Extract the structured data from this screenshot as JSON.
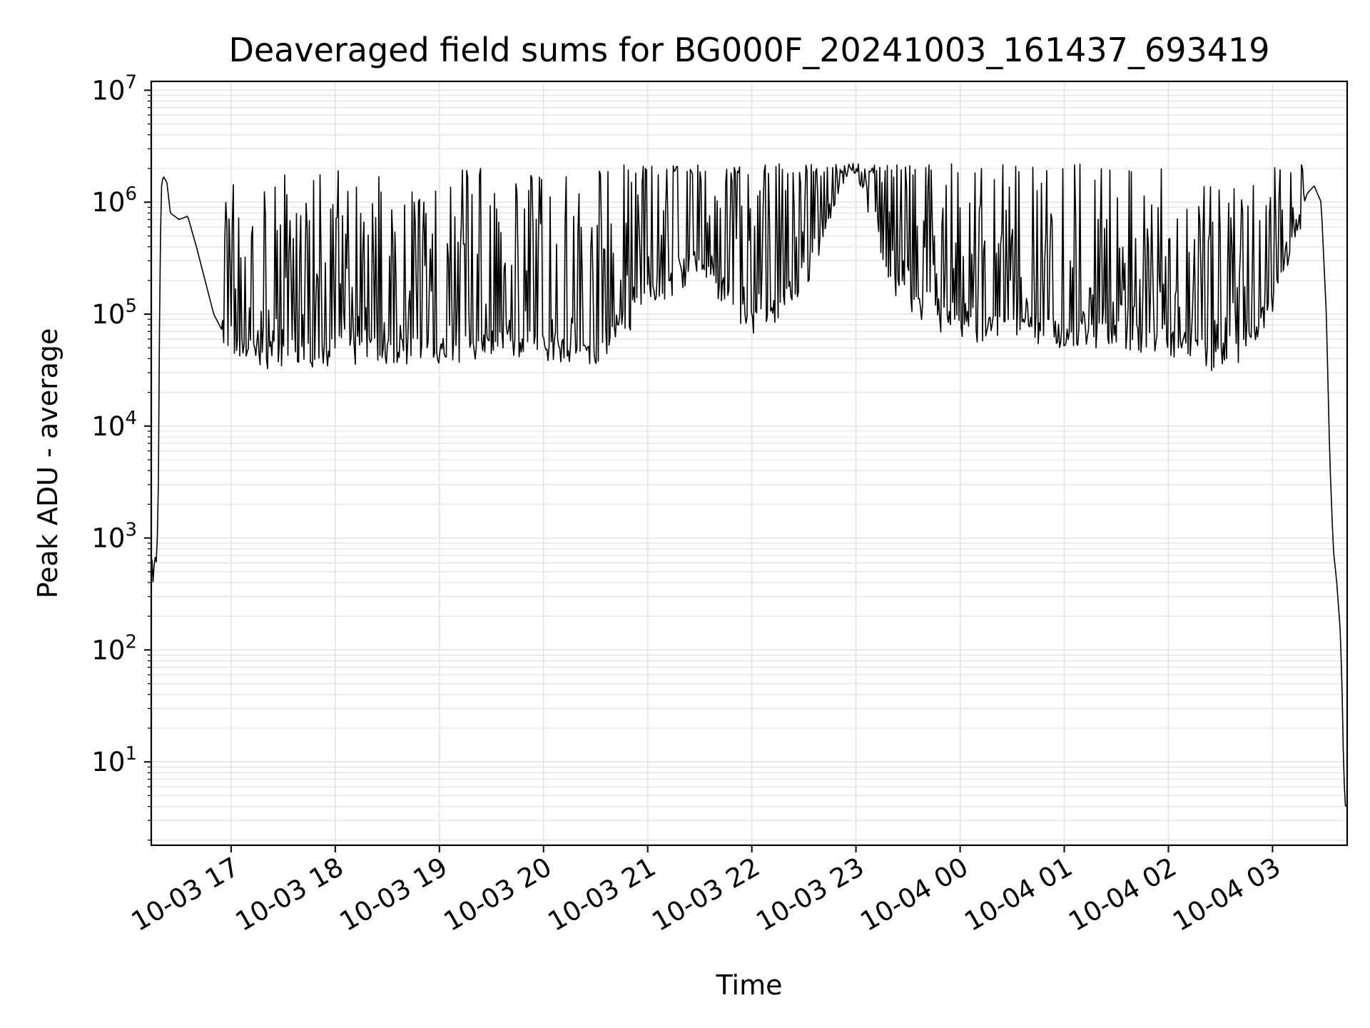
{
  "chart_data": {
    "type": "line",
    "title": "Deaveraged field sums for BG000F_20241003_161437_693419",
    "xlabel": "Time",
    "ylabel": "Peak ADU - average",
    "yscale": "log",
    "ylim": [
      1.8,
      12000000
    ],
    "xlim": [
      "2024-10-03 16:14",
      "2024-10-04 03:43"
    ],
    "grid": true,
    "legend": "none",
    "line_color": "#000000",
    "x_ticks": [
      {
        "value": "2024-10-03 17:00",
        "label": "10-03 17"
      },
      {
        "value": "2024-10-03 18:00",
        "label": "10-03 18"
      },
      {
        "value": "2024-10-03 19:00",
        "label": "10-03 19"
      },
      {
        "value": "2024-10-03 20:00",
        "label": "10-03 20"
      },
      {
        "value": "2024-10-03 21:00",
        "label": "10-03 21"
      },
      {
        "value": "2024-10-03 22:00",
        "label": "10-03 22"
      },
      {
        "value": "2024-10-03 23:00",
        "label": "10-03 23"
      },
      {
        "value": "2024-10-04 00:00",
        "label": "10-04 00"
      },
      {
        "value": "2024-10-04 01:00",
        "label": "10-04 01"
      },
      {
        "value": "2024-10-04 02:00",
        "label": "10-04 02"
      },
      {
        "value": "2024-10-04 03:00",
        "label": "10-04 03"
      }
    ],
    "y_ticks": [
      {
        "value": 10,
        "base": "10",
        "exp": "1"
      },
      {
        "value": 100,
        "base": "10",
        "exp": "2"
      },
      {
        "value": 1000,
        "base": "10",
        "exp": "3"
      },
      {
        "value": 10000,
        "base": "10",
        "exp": "4"
      },
      {
        "value": 100000,
        "base": "10",
        "exp": "5"
      },
      {
        "value": 1000000,
        "base": "10",
        "exp": "6"
      },
      {
        "value": 10000000,
        "base": "10",
        "exp": "7"
      }
    ],
    "series": [
      {
        "points": [
          [
            "2024-10-03 16:14",
            900
          ],
          [
            "2024-10-03 16:15",
            400
          ],
          [
            "2024-10-03 16:16",
            700
          ],
          [
            "2024-10-03 16:17",
            600
          ],
          [
            "2024-10-03 16:18",
            1800
          ],
          [
            "2024-10-03 16:19",
            300000
          ],
          [
            "2024-10-03 16:20",
            1500000
          ],
          [
            "2024-10-03 16:21",
            1700000
          ],
          [
            "2024-10-03 16:23",
            1500000
          ],
          [
            "2024-10-03 16:25",
            800000
          ],
          [
            "2024-10-03 16:30",
            700000
          ],
          [
            "2024-10-03 16:35",
            750000
          ],
          [
            "2024-10-03 16:40",
            400000
          ],
          [
            "2024-10-03 16:45",
            200000
          ],
          [
            "2024-10-03 16:50",
            100000
          ],
          [
            "2024-10-03 17:00",
            50000
          ],
          [
            "2024-10-03 17:30",
            45000
          ],
          [
            "2024-10-03 18:00",
            50000
          ],
          [
            "2024-10-03 18:30",
            50000
          ],
          [
            "2024-10-03 19:00",
            50000
          ],
          [
            "2024-10-03 19:30",
            55000
          ],
          [
            "2024-10-03 20:00",
            55000
          ],
          [
            "2024-10-03 20:30",
            50000
          ],
          [
            "2024-10-03 20:45",
            80000
          ],
          [
            "2024-10-03 21:00",
            150000
          ],
          [
            "2024-10-03 21:30",
            300000
          ],
          [
            "2024-10-03 22:00",
            80000
          ],
          [
            "2024-10-03 22:30",
            200000
          ],
          [
            "2024-10-03 22:50",
            1500000
          ],
          [
            "2024-10-03 22:58",
            2500000
          ],
          [
            "2024-10-03 23:05",
            1500000
          ],
          [
            "2024-10-03 23:20",
            200000
          ],
          [
            "2024-10-03 23:40",
            100000
          ],
          [
            "2024-10-04 00:00",
            80000
          ],
          [
            "2024-10-04 00:30",
            80000
          ],
          [
            "2024-10-04 01:00",
            70000
          ],
          [
            "2024-10-04 01:30",
            70000
          ],
          [
            "2024-10-04 02:00",
            60000
          ],
          [
            "2024-10-04 02:30",
            40000
          ],
          [
            "2024-10-04 02:45",
            50000
          ],
          [
            "2024-10-04 03:00",
            150000
          ],
          [
            "2024-10-04 03:15",
            700000
          ],
          [
            "2024-10-04 03:20",
            1200000
          ],
          [
            "2024-10-04 03:24",
            1400000
          ],
          [
            "2024-10-04 03:28",
            1000000
          ],
          [
            "2024-10-04 03:31",
            100000
          ],
          [
            "2024-10-04 03:33",
            5000
          ],
          [
            "2024-10-04 03:35",
            800
          ],
          [
            "2024-10-04 03:37",
            400
          ],
          [
            "2024-10-04 03:39",
            150
          ],
          [
            "2024-10-04 03:40",
            50
          ],
          [
            "2024-10-04 03:41",
            8
          ],
          [
            "2024-10-04 03:42",
            4
          ],
          [
            "2024-10-04 03:43",
            4
          ]
        ]
      }
    ]
  }
}
